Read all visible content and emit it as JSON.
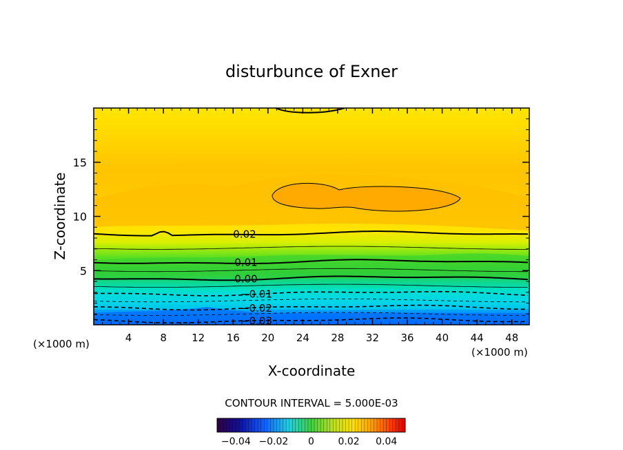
{
  "chart_data": {
    "type": "heatmap",
    "title": "disturbunce of Exner",
    "xlabel": "X-coordinate",
    "ylabel": "Z-coordinate",
    "x_unit_left": "(×1000 m)",
    "x_unit_right": "(×1000 m)",
    "xlim": [
      0,
      50
    ],
    "ylim": [
      0,
      20
    ],
    "x_ticks": [
      4,
      8,
      12,
      16,
      20,
      24,
      28,
      32,
      36,
      40,
      44,
      48
    ],
    "y_ticks": [
      5,
      10,
      15
    ],
    "contour_interval_text": "CONTOUR INTERVAL = 5.000E-03",
    "contour_levels": [
      {
        "value": 0.02,
        "label": "0.02",
        "style": "solid",
        "z": 8.4
      },
      {
        "value": 0.01,
        "label": "0.01",
        "style": "solid",
        "z": 5.8
      },
      {
        "value": 0.0,
        "label": "0.00",
        "style": "solid",
        "z": 4.3
      },
      {
        "value": -0.01,
        "label": "−0.01",
        "style": "dashed",
        "z": 2.9
      },
      {
        "value": -0.02,
        "label": "−0.02",
        "style": "dashed",
        "z": 1.6
      },
      {
        "value": -0.03,
        "label": "−0.03",
        "style": "dashed",
        "z": 0.4
      }
    ],
    "colorbar": {
      "range": [
        -0.05,
        0.05
      ],
      "tick_values": [
        -0.04,
        -0.02,
        0,
        0.02,
        0.04
      ],
      "tick_labels": [
        "−0.04",
        "−0.02",
        "0",
        "0.02",
        "0.04"
      ]
    },
    "colors": {
      "top_band": "#ffe100",
      "upper_mid": "#ffc800",
      "core": "#ffb000",
      "green": "#2ed12e",
      "cyan": "#00e6e6",
      "blue": "#0060ff"
    }
  }
}
